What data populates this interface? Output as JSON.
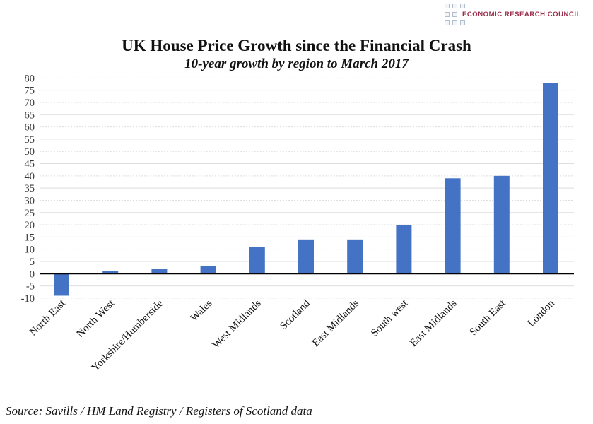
{
  "logo": {
    "name": "ECONOMIC RESEARCH COUNCIL",
    "text_color": "#9b2c4b"
  },
  "source": "Source: Savills / HM Land Registry / Registers of Scotland data",
  "chart_data": {
    "type": "bar",
    "title": "UK House Price Growth since the Financial Crash",
    "subtitle": "10-year growth by region to March 2017",
    "categories": [
      "North East",
      "North West",
      "Yorkshire/Humberside",
      "Wales",
      "West Midlands",
      "Scotland",
      "East Midlands",
      "South west",
      "East Midlands",
      "South East",
      "London"
    ],
    "values": [
      -9,
      1,
      2,
      3,
      11,
      14,
      14,
      20,
      39,
      40,
      78
    ],
    "xlabel": "",
    "ylabel": "",
    "ylim": [
      -10,
      80
    ],
    "ytick_step": 5,
    "bar_color": "#4472C4",
    "grid": true,
    "gridline_color": "#dedede",
    "axis_color": "#000000",
    "tick_label_color": "#3a3a3a",
    "legend_position": "none"
  }
}
